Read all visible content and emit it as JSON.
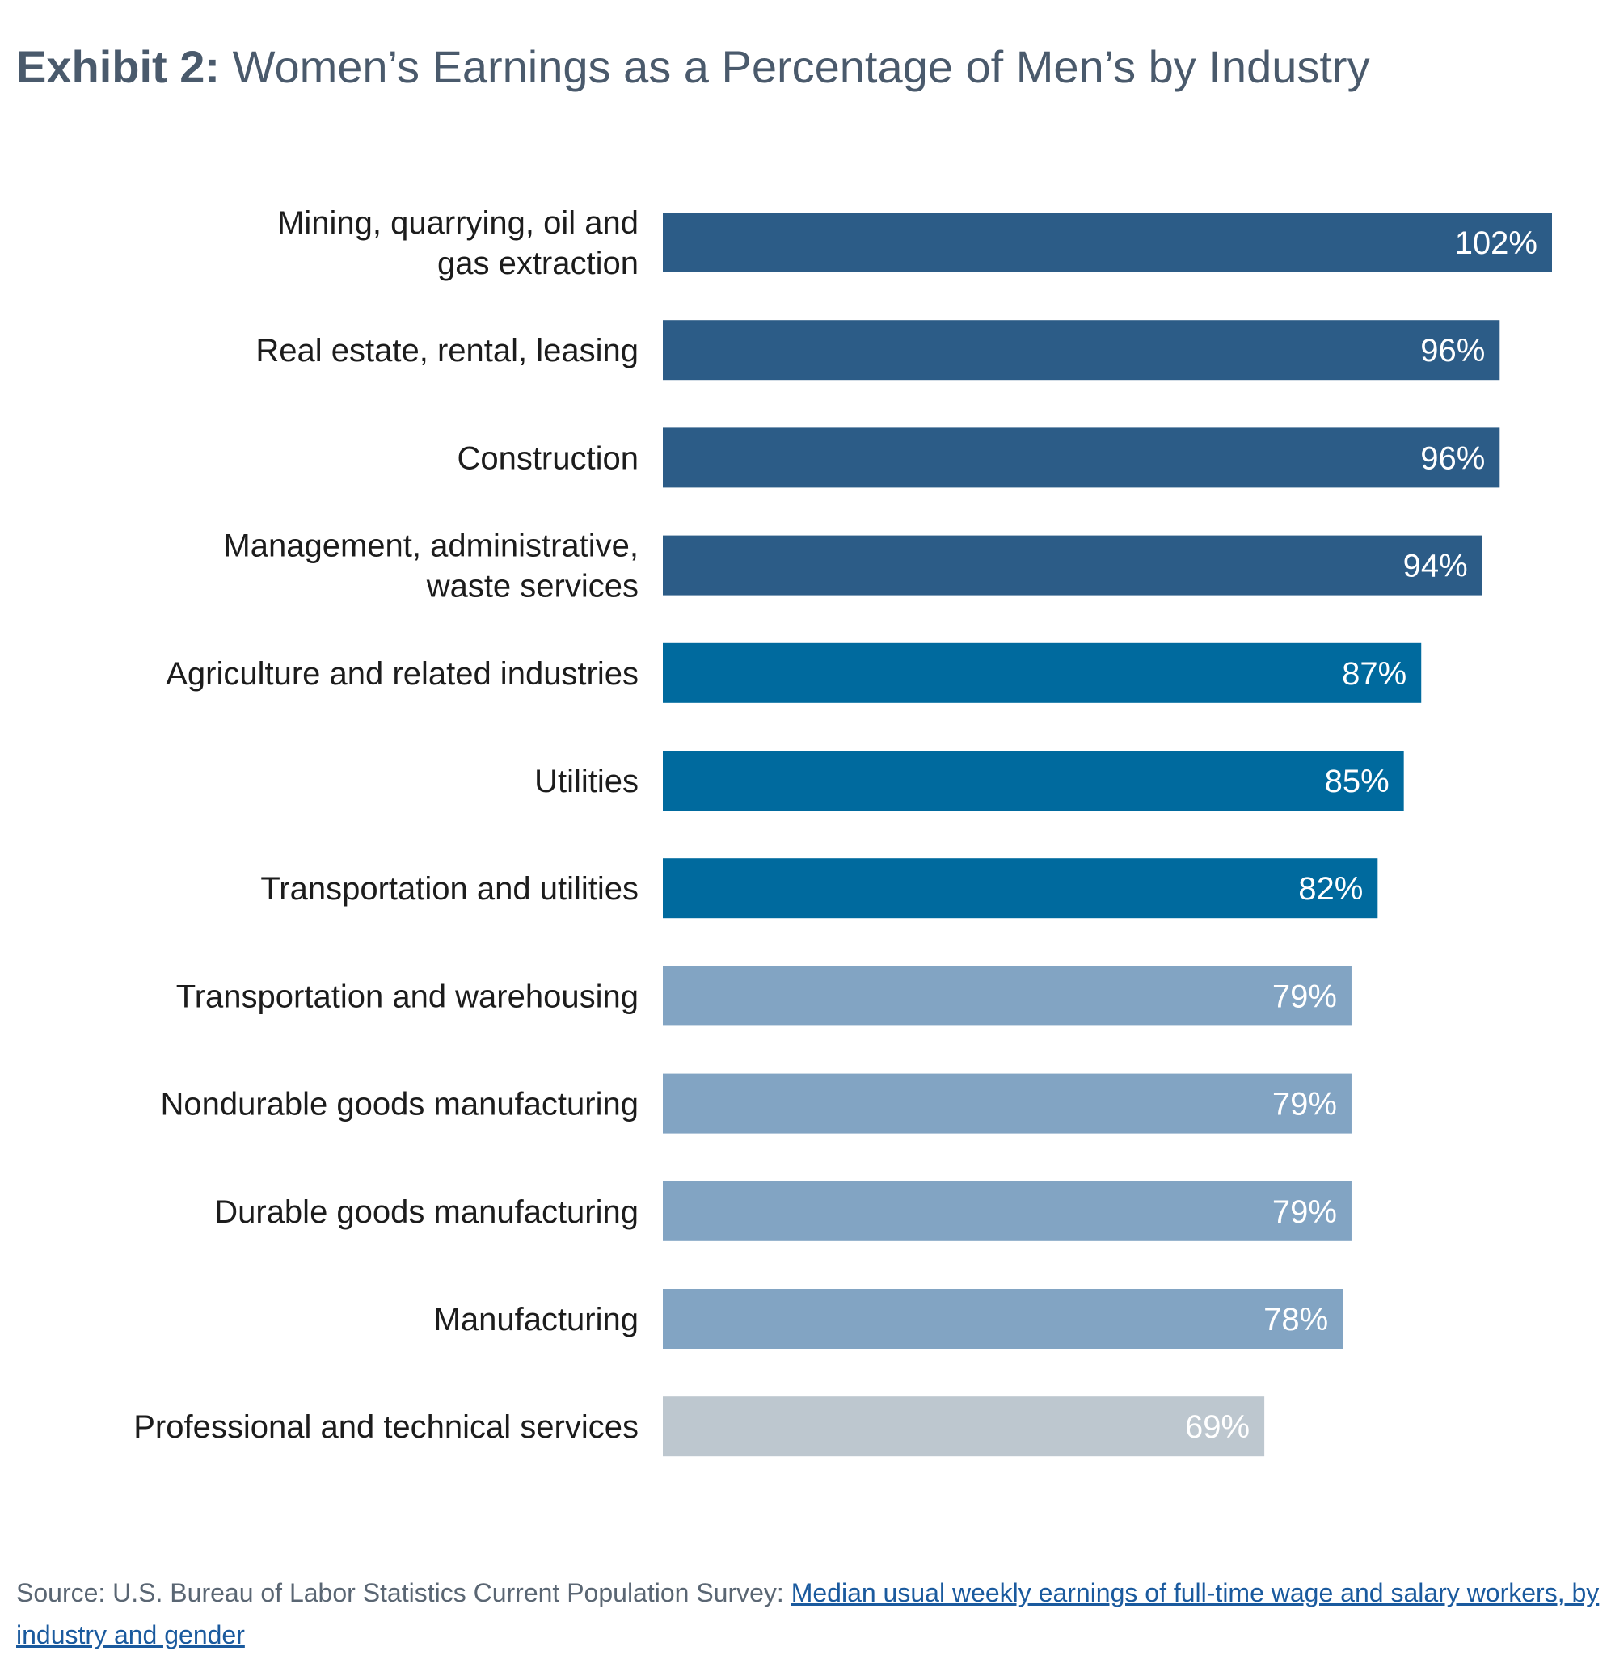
{
  "title": {
    "prefix": "Exhibit 2:",
    "text": "Women’s Earnings as a Percentage of Men’s by Industry"
  },
  "colors": {
    "dark": "#2c5c87",
    "medium": "#006a9e",
    "light": "#82a4c3",
    "lightest": "#bdc7cf"
  },
  "chart_data": {
    "type": "bar",
    "orientation": "horizontal",
    "categories": [
      [
        "Mining, quarrying, oil and",
        "gas extraction"
      ],
      [
        "Real estate, rental, leasing"
      ],
      [
        "Construction"
      ],
      [
        "Management, administrative,",
        "waste services"
      ],
      [
        "Agriculture and related industries"
      ],
      [
        "Utilities"
      ],
      [
        "Transportation and utilities"
      ],
      [
        "Transportation and warehousing"
      ],
      [
        "Nondurable goods manufacturing"
      ],
      [
        "Durable goods manufacturing"
      ],
      [
        "Manufacturing"
      ],
      [
        "Professional and technical services"
      ]
    ],
    "values": [
      102,
      96,
      96,
      94,
      87,
      85,
      82,
      79,
      79,
      79,
      78,
      69
    ],
    "value_labels": [
      "102%",
      "96%",
      "96%",
      "94%",
      "87%",
      "85%",
      "82%",
      "79%",
      "79%",
      "79%",
      "78%",
      "69%"
    ],
    "bar_colors": [
      "dark",
      "dark",
      "dark",
      "dark",
      "medium",
      "medium",
      "medium",
      "light",
      "light",
      "light",
      "light",
      "lightest"
    ],
    "unit": "%",
    "xlim": [
      0,
      102
    ],
    "grid": false,
    "legend": "none"
  },
  "source": {
    "prefix": "Source: U.S. Bureau of Labor Statistics Current Population Survey: ",
    "link_text": "Median usual weekly earnings of full-time wage and salary workers, by industry and gender"
  }
}
